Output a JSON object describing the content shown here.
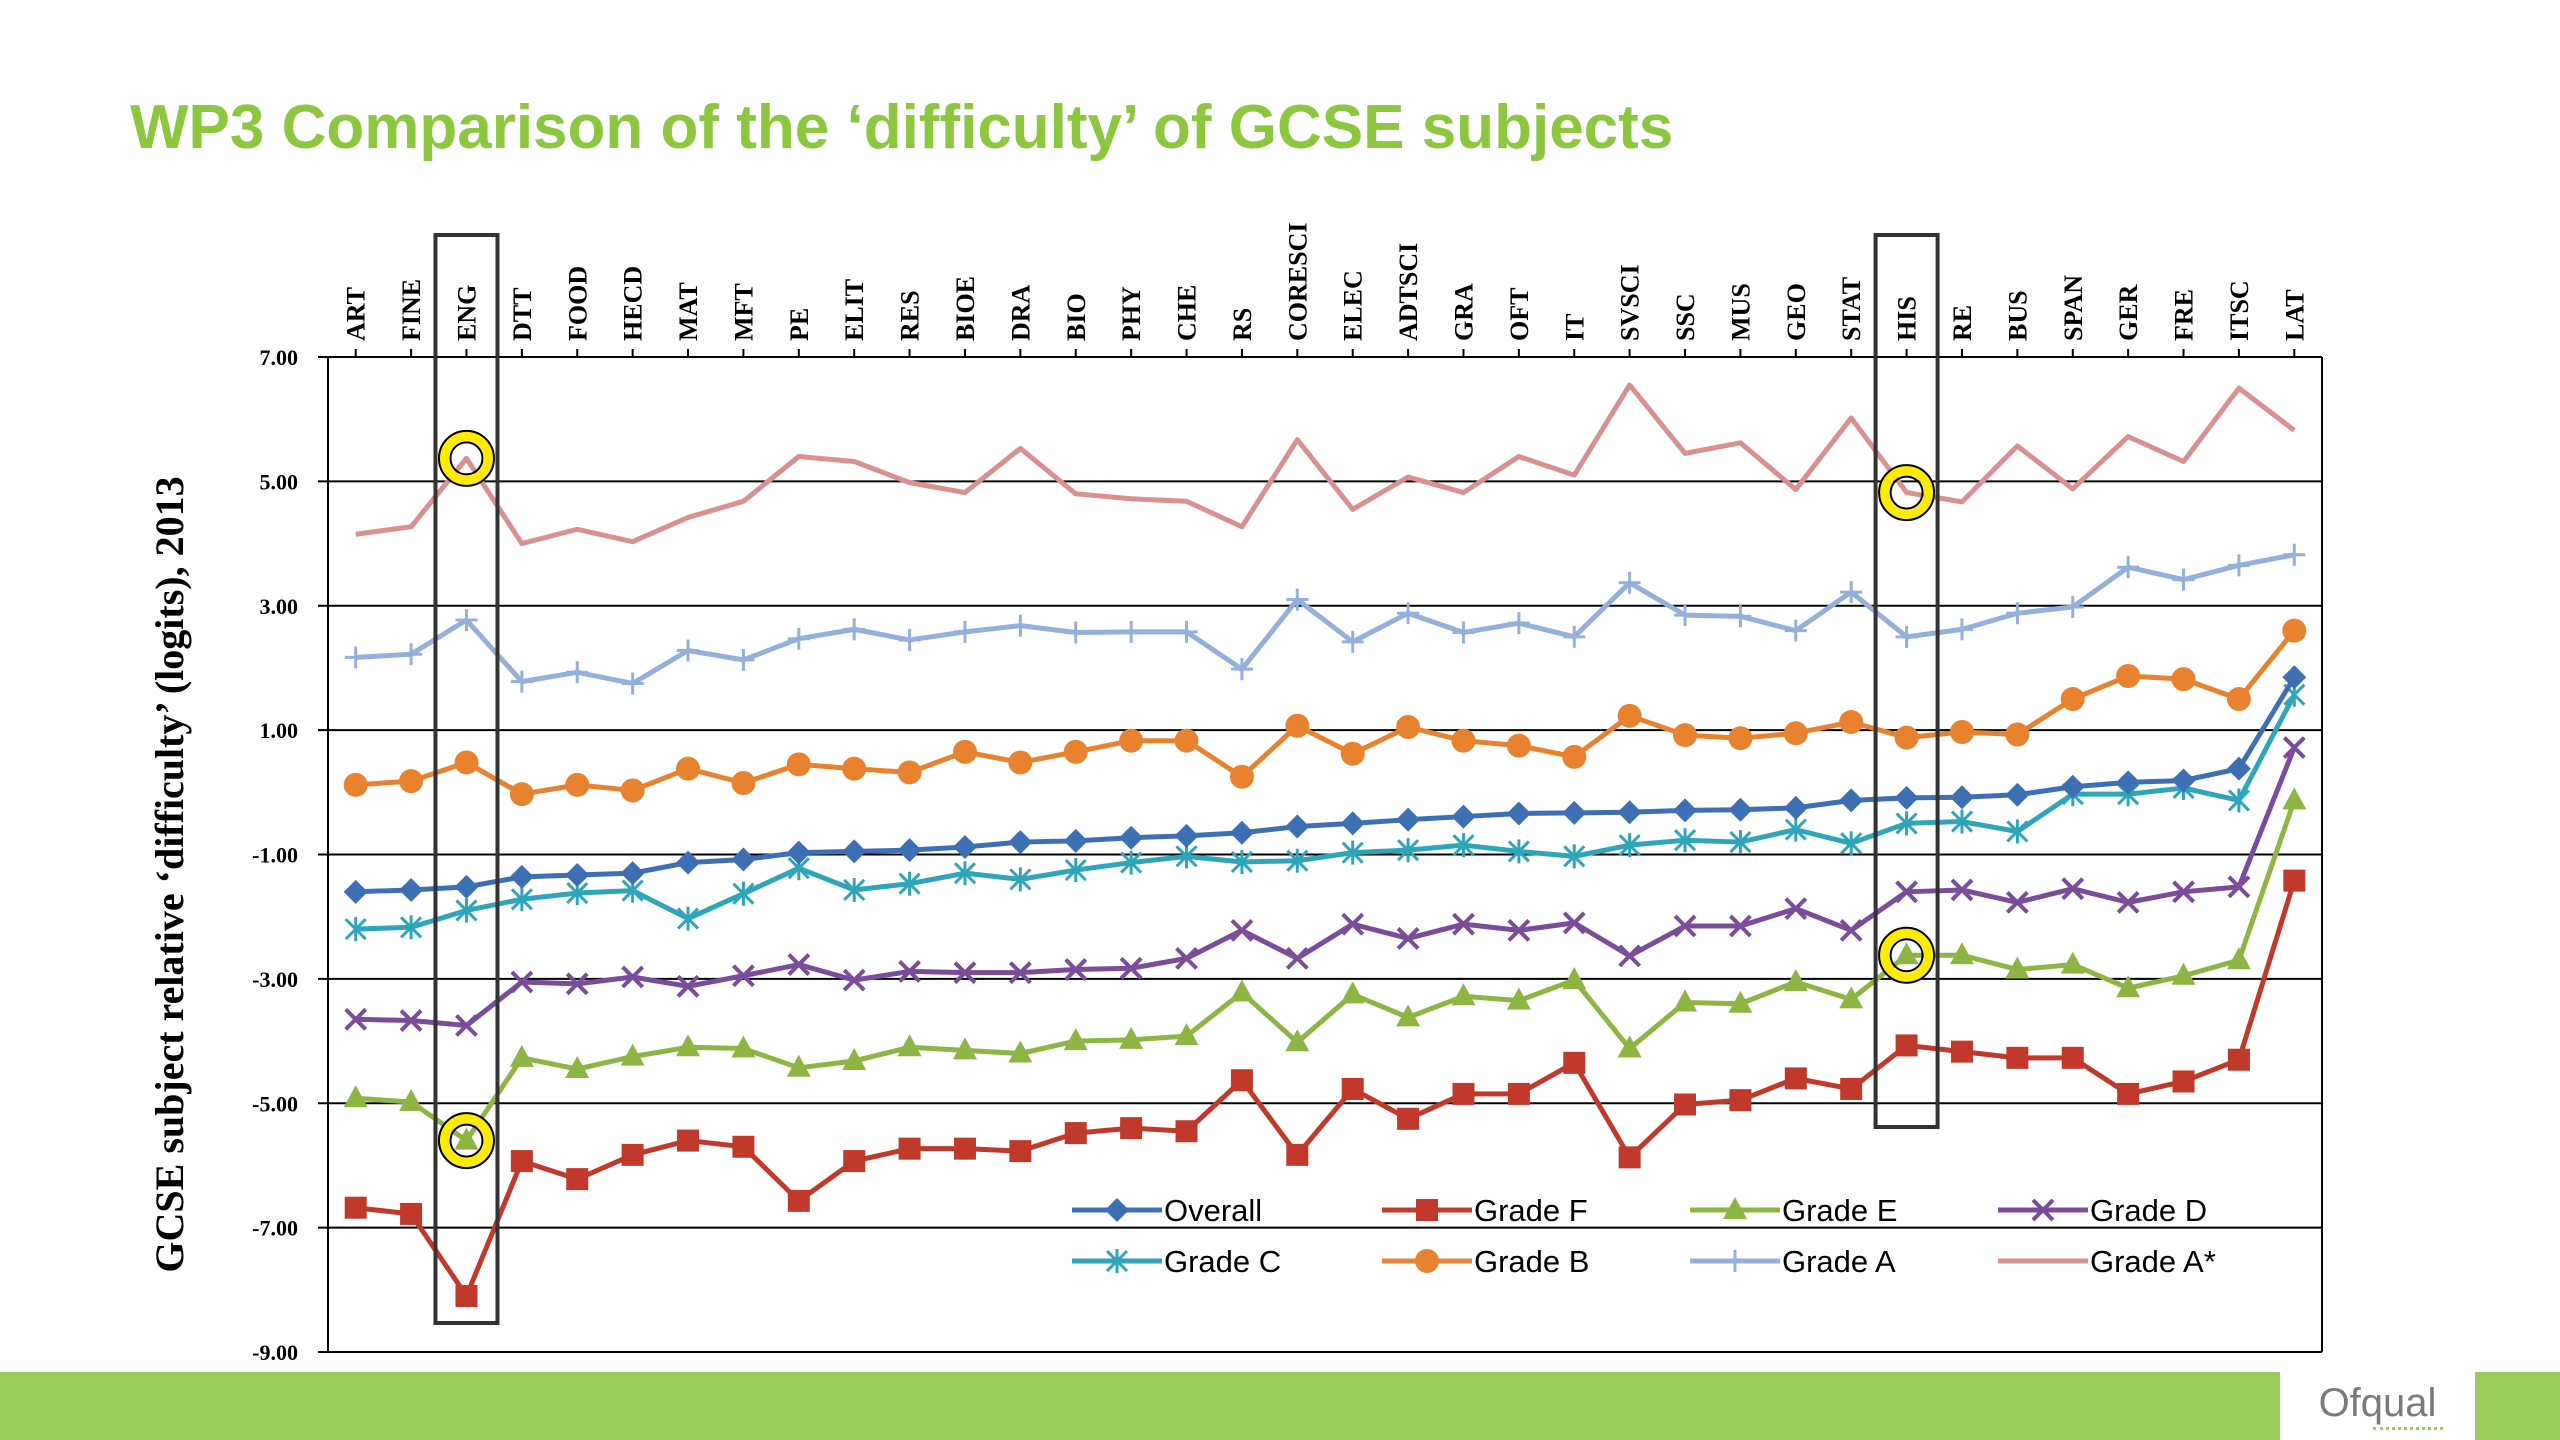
{
  "slide": {
    "title": "WP3  Comparison of the ‘difficulty’ of GCSE subjects",
    "logo": "Ofqual"
  },
  "colors": {
    "title": "#8dc63f",
    "bottom_bar": "#9bcb59",
    "highlight_ring": "#ffeb00"
  },
  "chart_data": {
    "type": "line",
    "ylabel": "GCSE subject relative ‘difficulty’ (logits), 2013",
    "ylim": [
      -9,
      7
    ],
    "yticks": [
      7,
      5,
      3,
      1,
      -1,
      -3,
      -5,
      -7,
      -9
    ],
    "ytick_labels": [
      "7.00",
      "5.00",
      "3.00",
      "1.00",
      "-1.00",
      "-3.00",
      "-5.00",
      "-7.00",
      "-9.00"
    ],
    "grid": true,
    "legend_position": "bottom-right",
    "categories": [
      "ART",
      "FINE",
      "ENG",
      "DTT",
      "FOOD",
      "HECD",
      "MAT",
      "MFT",
      "PE",
      "ELIT",
      "RES",
      "BIOE",
      "DRA",
      "BIO",
      "PHY",
      "CHE",
      "RS",
      "CORESCI",
      "ELEC",
      "ADTSCI",
      "GRA",
      "OFT",
      "IT",
      "SVSCI",
      "SSC",
      "MUS",
      "GEO",
      "STAT",
      "HIS",
      "RE",
      "BUS",
      "SPAN",
      "GER",
      "FRE",
      "ITSC",
      "LAT"
    ],
    "series": [
      {
        "name": "Overall",
        "color": "#3d6fb4",
        "marker": "diamond",
        "values": [
          -1.6,
          -1.57,
          -1.52,
          -1.36,
          -1.33,
          -1.3,
          -1.13,
          -1.08,
          -0.97,
          -0.95,
          -0.93,
          -0.88,
          -0.8,
          -0.78,
          -0.73,
          -0.7,
          -0.65,
          -0.55,
          -0.5,
          -0.44,
          -0.39,
          -0.34,
          -0.33,
          -0.32,
          -0.29,
          -0.28,
          -0.25,
          -0.13,
          -0.09,
          -0.08,
          -0.04,
          0.09,
          0.16,
          0.19,
          0.38,
          1.85
        ]
      },
      {
        "name": "Grade F",
        "color": "#c0392b",
        "marker": "square",
        "values": [
          -6.68,
          -6.78,
          -8.1,
          -5.93,
          -6.22,
          -5.83,
          -5.6,
          -5.7,
          -6.57,
          -5.93,
          -5.73,
          -5.73,
          -5.77,
          -5.48,
          -5.4,
          -5.45,
          -4.63,
          -5.83,
          -4.77,
          -5.25,
          -4.85,
          -4.85,
          -4.35,
          -5.87,
          -5.02,
          -4.95,
          -4.6,
          -4.77,
          -4.07,
          -4.17,
          -4.27,
          -4.27,
          -4.85,
          -4.65,
          -4.3,
          -1.42
        ]
      },
      {
        "name": "Grade E",
        "color": "#8db543",
        "marker": "triangle",
        "values": [
          -4.92,
          -4.98,
          -5.6,
          -4.27,
          -4.45,
          -4.25,
          -4.1,
          -4.12,
          -4.43,
          -4.32,
          -4.1,
          -4.15,
          -4.2,
          -4.0,
          -3.98,
          -3.92,
          -3.22,
          -4.02,
          -3.25,
          -3.62,
          -3.28,
          -3.35,
          -3.02,
          -4.12,
          -3.38,
          -3.4,
          -3.05,
          -3.33,
          -2.62,
          -2.62,
          -2.85,
          -2.77,
          -3.15,
          -2.95,
          -2.7,
          -0.13
        ]
      },
      {
        "name": "Grade D",
        "color": "#7a4c9a",
        "marker": "x",
        "values": [
          -3.65,
          -3.67,
          -3.75,
          -3.05,
          -3.08,
          -2.97,
          -3.12,
          -2.95,
          -2.77,
          -3.02,
          -2.88,
          -2.9,
          -2.9,
          -2.85,
          -2.83,
          -2.67,
          -2.22,
          -2.67,
          -2.12,
          -2.35,
          -2.12,
          -2.22,
          -2.1,
          -2.63,
          -2.15,
          -2.15,
          -1.87,
          -2.22,
          -1.6,
          -1.57,
          -1.77,
          -1.55,
          -1.77,
          -1.6,
          -1.52,
          0.72
        ]
      },
      {
        "name": "Grade C",
        "color": "#2ea5b8",
        "marker": "star",
        "values": [
          -2.2,
          -2.17,
          -1.9,
          -1.72,
          -1.62,
          -1.58,
          -2.03,
          -1.63,
          -1.22,
          -1.57,
          -1.47,
          -1.3,
          -1.4,
          -1.25,
          -1.13,
          -1.03,
          -1.12,
          -1.1,
          -0.97,
          -0.93,
          -0.85,
          -0.95,
          -1.03,
          -0.85,
          -0.77,
          -0.8,
          -0.6,
          -0.82,
          -0.5,
          -0.47,
          -0.63,
          -0.03,
          -0.03,
          0.07,
          -0.13,
          1.57
        ]
      },
      {
        "name": "Grade B",
        "color": "#e8822e",
        "marker": "circle",
        "values": [
          0.12,
          0.18,
          0.48,
          -0.03,
          0.12,
          0.03,
          0.38,
          0.15,
          0.45,
          0.38,
          0.32,
          0.65,
          0.48,
          0.65,
          0.83,
          0.83,
          0.25,
          1.07,
          0.62,
          1.05,
          0.83,
          0.75,
          0.57,
          1.23,
          0.92,
          0.87,
          0.95,
          1.13,
          0.88,
          0.97,
          0.93,
          1.5,
          1.87,
          1.82,
          1.5,
          2.6
        ]
      },
      {
        "name": "Grade A",
        "color": "#94b0da",
        "marker": "plus",
        "values": [
          2.17,
          2.22,
          2.77,
          1.78,
          1.93,
          1.75,
          2.28,
          2.13,
          2.47,
          2.62,
          2.45,
          2.58,
          2.68,
          2.57,
          2.58,
          2.58,
          1.98,
          3.1,
          2.42,
          2.88,
          2.57,
          2.72,
          2.5,
          3.37,
          2.85,
          2.83,
          2.6,
          3.22,
          2.5,
          2.62,
          2.88,
          2.98,
          3.62,
          3.42,
          3.65,
          3.82
        ]
      },
      {
        "name": "Grade A*",
        "color": "#d9908f",
        "marker": "none",
        "values": [
          4.15,
          4.27,
          5.37,
          4.0,
          4.23,
          4.03,
          4.42,
          4.68,
          5.4,
          5.32,
          4.98,
          4.82,
          5.53,
          4.8,
          4.72,
          4.68,
          4.27,
          5.67,
          4.55,
          5.07,
          4.82,
          5.4,
          5.1,
          6.55,
          5.45,
          5.62,
          4.87,
          6.02,
          4.82,
          4.67,
          5.57,
          4.88,
          5.72,
          5.32,
          6.5,
          5.82
        ]
      }
    ],
    "highlight_boxes": [
      {
        "category": "ENG"
      },
      {
        "category": "HIS"
      }
    ],
    "highlight_rings": [
      {
        "category": "ENG",
        "series": "Grade A*"
      },
      {
        "category": "ENG",
        "series": "Grade E"
      },
      {
        "category": "HIS",
        "series": "Grade A*"
      },
      {
        "category": "HIS",
        "series": "Grade E"
      }
    ]
  }
}
